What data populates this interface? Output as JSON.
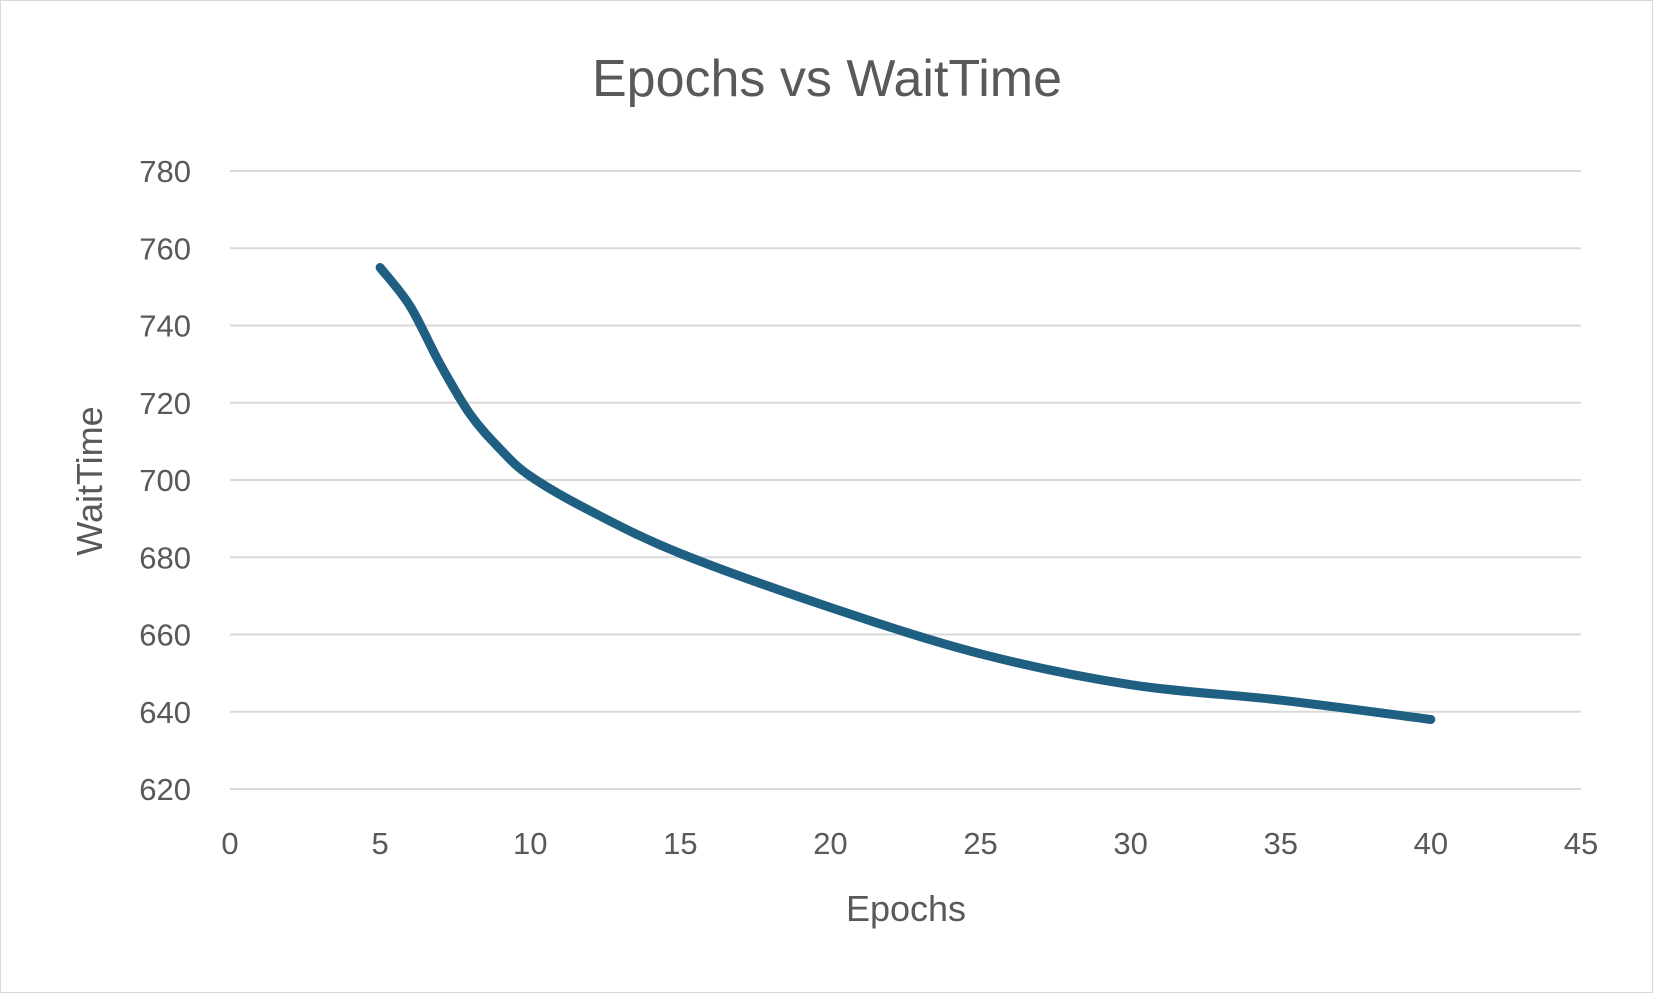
{
  "chart_data": {
    "type": "line",
    "title": "Epochs vs WaitTime",
    "xlabel": "Epochs",
    "ylabel": "WaitTime",
    "xlim": [
      0,
      45
    ],
    "ylim": [
      620,
      780
    ],
    "x_ticks": [
      0,
      5,
      10,
      15,
      20,
      25,
      30,
      35,
      40,
      45
    ],
    "y_ticks": [
      620,
      640,
      660,
      680,
      700,
      720,
      740,
      760,
      780
    ],
    "grid": "horizontal",
    "legend": "none",
    "series": [
      {
        "color": "#1f5f82",
        "smooth": true,
        "x": [
          5,
          6,
          7,
          8,
          9,
          10,
          12,
          15,
          20,
          25,
          30,
          35,
          40
        ],
        "y": [
          755,
          745,
          730,
          717,
          708,
          701,
          692,
          681,
          667,
          655,
          647,
          643,
          638
        ]
      }
    ]
  }
}
